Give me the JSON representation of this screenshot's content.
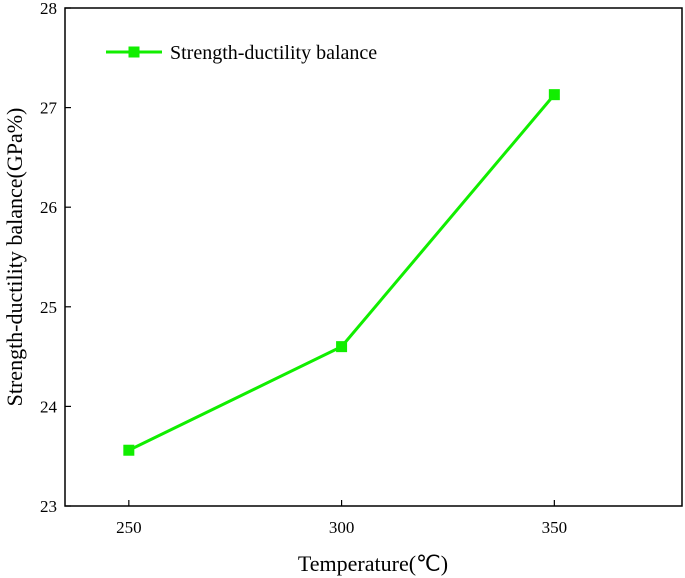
{
  "chart_data": {
    "type": "line",
    "x": [
      250,
      300,
      350
    ],
    "series": [
      {
        "name": "Strength-ductility balance",
        "values": [
          23.56,
          24.6,
          27.13
        ],
        "color": "#11ee00",
        "marker": "square"
      }
    ],
    "xlabel": "Temperature(℃)",
    "ylabel": "Strength-ductility balance(GPa%)",
    "xticks": [
      "250",
      "300",
      "350"
    ],
    "yticks": [
      "23",
      "24",
      "25",
      "26",
      "27",
      "28"
    ],
    "xlim": [
      235,
      380
    ],
    "ylim": [
      23,
      28
    ],
    "grid": false,
    "legend_position": "top-left"
  }
}
